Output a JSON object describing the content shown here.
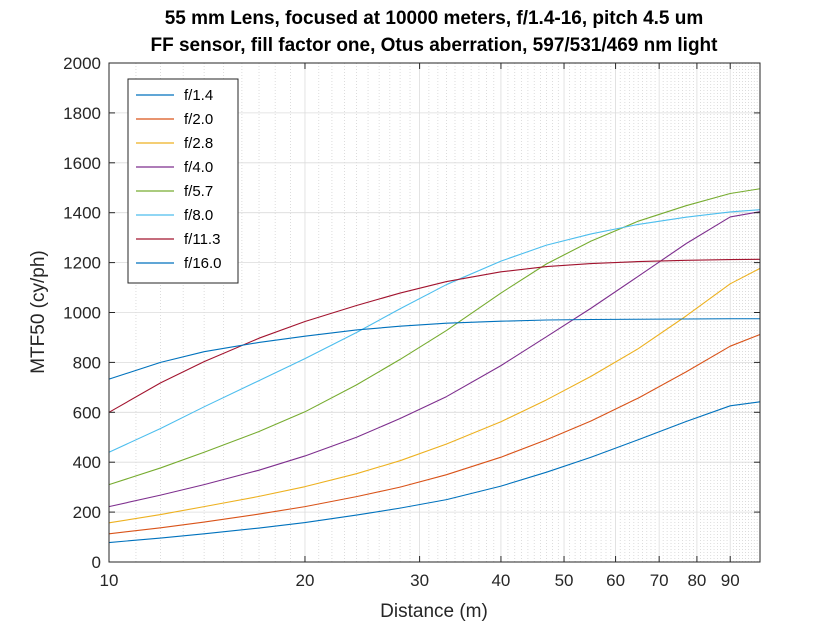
{
  "chart_data": {
    "type": "line",
    "title_lines": [
      "55 mm Lens, focused at 10000 meters, f/1.4-16, pitch 4.5 um",
      "FF sensor, fill factor one, Otus aberration, 597/531/469 nm light"
    ],
    "xlabel": "Distance (m)",
    "ylabel": "MTF50 (cy/ph)",
    "xscale": "log",
    "xlim": [
      10,
      100
    ],
    "ylim": [
      0,
      2000
    ],
    "grid": true,
    "legend_position": "top-left",
    "x_ticks": [
      {
        "value": 10,
        "label": "10"
      },
      {
        "value": 20,
        "label": "20"
      },
      {
        "value": 30,
        "label": "30"
      },
      {
        "value": 40,
        "label": "40"
      },
      {
        "value": 50,
        "label": "50"
      },
      {
        "value": 60,
        "label": "60"
      },
      {
        "value": 70,
        "label": "70"
      },
      {
        "value": 80,
        "label": "80"
      },
      {
        "value": 90,
        "label": "90"
      }
    ],
    "y_ticks": [
      0,
      200,
      400,
      600,
      800,
      1000,
      1200,
      1400,
      1600,
      1800,
      2000
    ],
    "x": [
      10,
      12,
      14,
      17,
      20,
      24,
      28,
      33,
      40,
      47,
      55,
      65,
      77,
      90,
      100
    ],
    "series": [
      {
        "name": "f/1.4",
        "color": "#0072bd",
        "values": [
          78,
          96,
          113,
          136,
          158,
          188,
          216,
          250,
          304,
          360,
          420,
          490,
          563,
          626,
          642
        ]
      },
      {
        "name": "f/2.0",
        "color": "#d95319",
        "values": [
          113,
          137,
          160,
          192,
          222,
          262,
          300,
          350,
          420,
          490,
          565,
          657,
          762,
          865,
          912
        ]
      },
      {
        "name": "f/2.8",
        "color": "#edb120",
        "values": [
          157,
          190,
          222,
          263,
          302,
          354,
          406,
          473,
          562,
          650,
          744,
          855,
          986,
          1115,
          1177
        ]
      },
      {
        "name": "f/4.0",
        "color": "#7e2f8e",
        "values": [
          222,
          268,
          310,
          368,
          425,
          500,
          575,
          663,
          787,
          903,
          1017,
          1145,
          1276,
          1383,
          1404
        ]
      },
      {
        "name": "f/5.7",
        "color": "#77ac30",
        "values": [
          310,
          377,
          440,
          523,
          602,
          710,
          812,
          928,
          1078,
          1195,
          1286,
          1366,
          1428,
          1477,
          1496
        ]
      },
      {
        "name": "f/8.0",
        "color": "#4dbeee",
        "values": [
          440,
          535,
          622,
          727,
          815,
          920,
          1015,
          1112,
          1206,
          1270,
          1315,
          1353,
          1382,
          1403,
          1412
        ]
      },
      {
        "name": "f/11.3",
        "color": "#a2142f",
        "values": [
          600,
          718,
          803,
          897,
          964,
          1028,
          1078,
          1124,
          1163,
          1184,
          1196,
          1204,
          1209,
          1212,
          1213
        ]
      },
      {
        "name": "f/16.0",
        "color": "#0072bd",
        "values": [
          733,
          800,
          843,
          880,
          905,
          930,
          945,
          957,
          965,
          970,
          972,
          973,
          974,
          975,
          975
        ]
      }
    ]
  }
}
